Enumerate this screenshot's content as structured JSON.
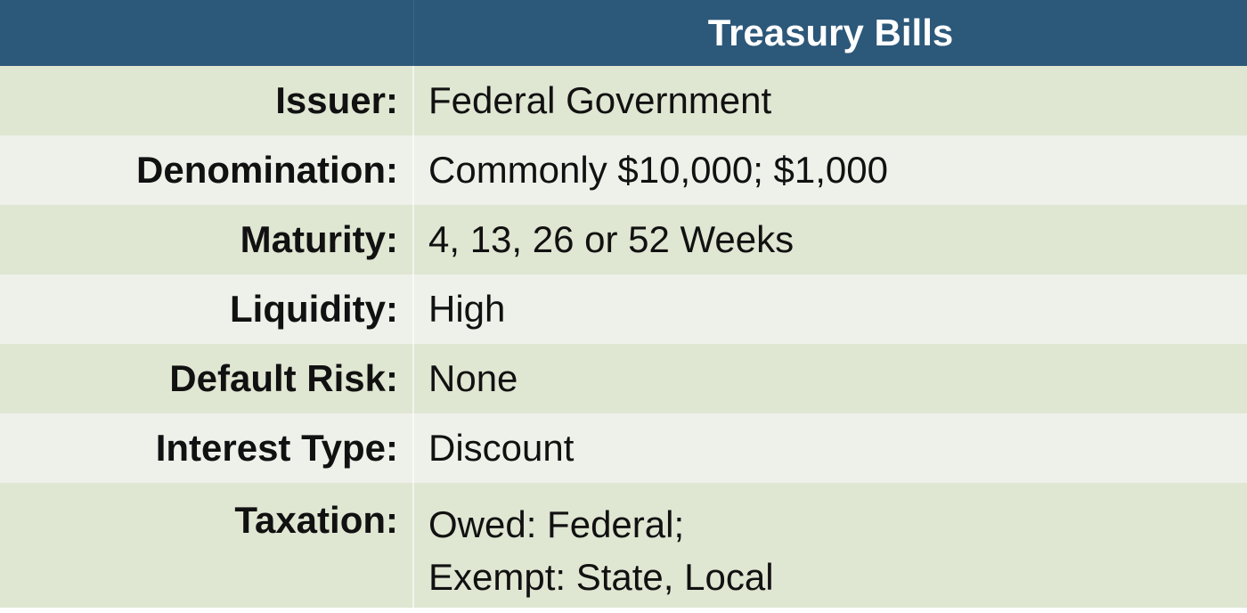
{
  "header": {
    "title": "Treasury Bills"
  },
  "rows": [
    {
      "label": "Issuer:",
      "value": "Federal Government"
    },
    {
      "label": "Denomination:",
      "value": "Commonly $10,000; $1,000"
    },
    {
      "label": "Maturity:",
      "value": "4, 13, 26 or 52 Weeks"
    },
    {
      "label": "Liquidity:",
      "value": "High"
    },
    {
      "label": "Default Risk:",
      "value": "None"
    },
    {
      "label": "Interest Type:",
      "value": "Discount"
    },
    {
      "label": "Taxation:",
      "value_line1": "Owed: Federal;",
      "value_line2": "Exempt: State, Local"
    }
  ],
  "colors": {
    "header_bg": "#2c5879",
    "row_odd": "#dfe6d2",
    "row_even": "#eef1ea"
  }
}
